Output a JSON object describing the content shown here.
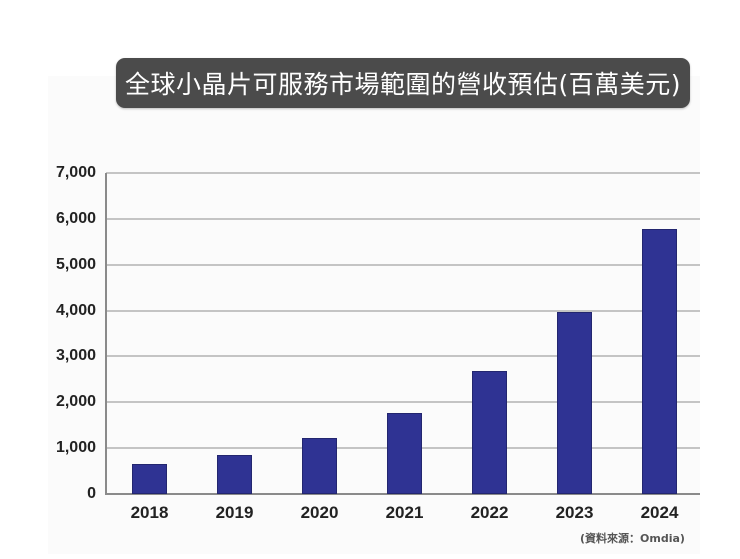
{
  "chart_data": {
    "type": "bar",
    "title": "全球小晶片可服務市場範圍的營收預估(百萬美元)",
    "xlabel": "",
    "ylabel": "",
    "categories": [
      "2018",
      "2019",
      "2020",
      "2021",
      "2022",
      "2023",
      "2024"
    ],
    "values": [
      660,
      860,
      1230,
      1770,
      2680,
      3970,
      5770
    ],
    "ylim": [
      0,
      7000
    ],
    "yticks": [
      "0",
      "1,000",
      "2,000",
      "3,000",
      "4,000",
      "5,000",
      "6,000",
      "7,000"
    ],
    "grid": true,
    "legend": null,
    "bar_color": "#2f3393",
    "source": "(資料來源：Omdia)"
  }
}
